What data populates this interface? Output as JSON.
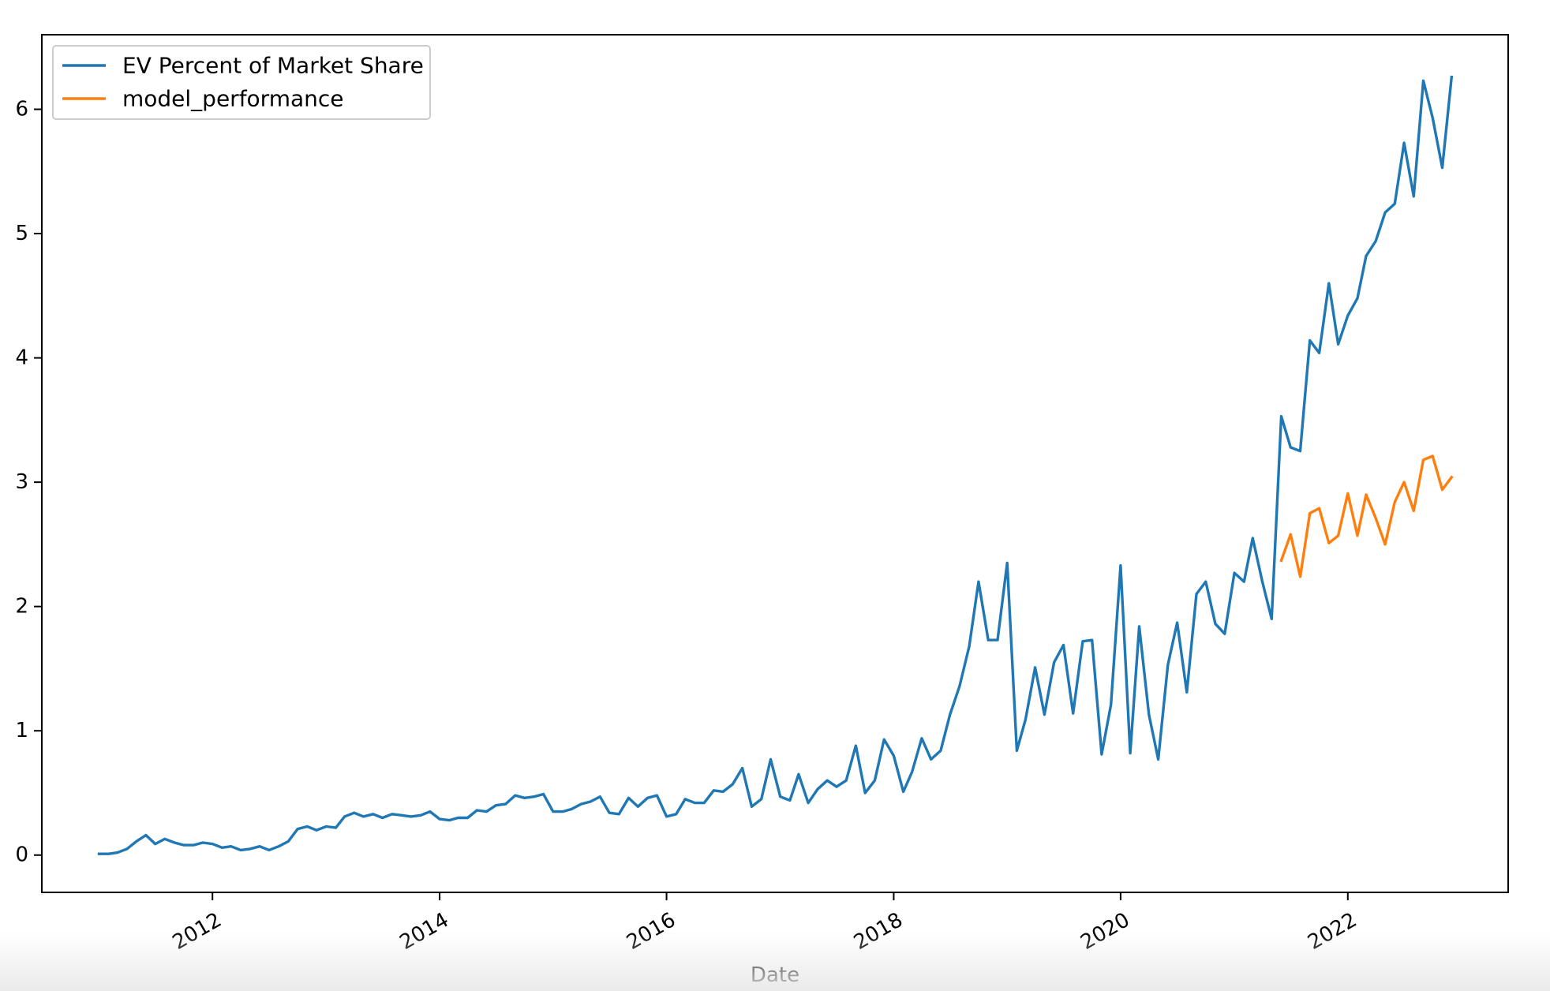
{
  "chart_data": {
    "type": "line",
    "title": "",
    "xlabel": "Date",
    "ylabel": "",
    "xlim": [
      "2010-07-01",
      "2023-06-01"
    ],
    "ylim": [
      -0.3,
      6.6
    ],
    "x_ticks": [
      {
        "date": "2012-01-01",
        "label": "2012"
      },
      {
        "date": "2014-01-01",
        "label": "2014"
      },
      {
        "date": "2016-01-01",
        "label": "2016"
      },
      {
        "date": "2018-01-01",
        "label": "2018"
      },
      {
        "date": "2020-01-01",
        "label": "2020"
      },
      {
        "date": "2022-01-01",
        "label": "2022"
      }
    ],
    "y_ticks": [
      0,
      1,
      2,
      3,
      4,
      5,
      6
    ],
    "grid": false,
    "legend": {
      "position": "top-left"
    },
    "series": [
      {
        "name": "EV Percent of Market Share",
        "color": "#1f77b4",
        "start": "2011-01",
        "values": [
          0.01,
          0.01,
          0.02,
          0.05,
          0.11,
          0.16,
          0.09,
          0.13,
          0.1,
          0.08,
          0.08,
          0.1,
          0.09,
          0.06,
          0.07,
          0.04,
          0.05,
          0.07,
          0.04,
          0.07,
          0.11,
          0.21,
          0.23,
          0.2,
          0.23,
          0.22,
          0.31,
          0.34,
          0.31,
          0.33,
          0.3,
          0.33,
          0.32,
          0.31,
          0.32,
          0.35,
          0.29,
          0.28,
          0.3,
          0.3,
          0.36,
          0.35,
          0.4,
          0.41,
          0.48,
          0.46,
          0.47,
          0.49,
          0.35,
          0.35,
          0.37,
          0.41,
          0.43,
          0.47,
          0.34,
          0.33,
          0.46,
          0.39,
          0.46,
          0.48,
          0.31,
          0.33,
          0.45,
          0.42,
          0.42,
          0.52,
          0.51,
          0.57,
          0.7,
          0.39,
          0.45,
          0.77,
          0.47,
          0.44,
          0.65,
          0.42,
          0.53,
          0.6,
          0.55,
          0.6,
          0.88,
          0.5,
          0.6,
          0.93,
          0.8,
          0.51,
          0.67,
          0.94,
          0.77,
          0.84,
          1.13,
          1.36,
          1.68,
          2.2,
          1.73,
          1.73,
          2.35,
          0.84,
          1.09,
          1.51,
          1.13,
          1.55,
          1.69,
          1.14,
          1.72,
          1.73,
          0.81,
          1.21,
          2.33,
          0.82,
          1.84,
          1.13,
          0.77,
          1.53,
          1.87,
          1.31,
          2.1,
          2.2,
          1.86,
          1.78,
          2.27,
          2.2,
          2.55,
          2.2,
          1.9,
          3.53,
          3.28,
          3.25,
          4.14,
          4.04,
          4.6,
          4.11,
          4.34,
          4.48,
          4.82,
          4.94,
          5.17,
          5.24,
          5.73,
          5.3,
          6.23,
          5.93,
          5.53,
          6.26
        ]
      },
      {
        "name": "model_performance",
        "color": "#ff7f0e",
        "start": "2021-06",
        "values": [
          2.37,
          2.58,
          2.24,
          2.75,
          2.79,
          2.51,
          2.57,
          2.91,
          2.57,
          2.9,
          2.71,
          2.5,
          2.84,
          3.0,
          2.77,
          3.18,
          3.21,
          2.94,
          3.04
        ]
      }
    ]
  }
}
